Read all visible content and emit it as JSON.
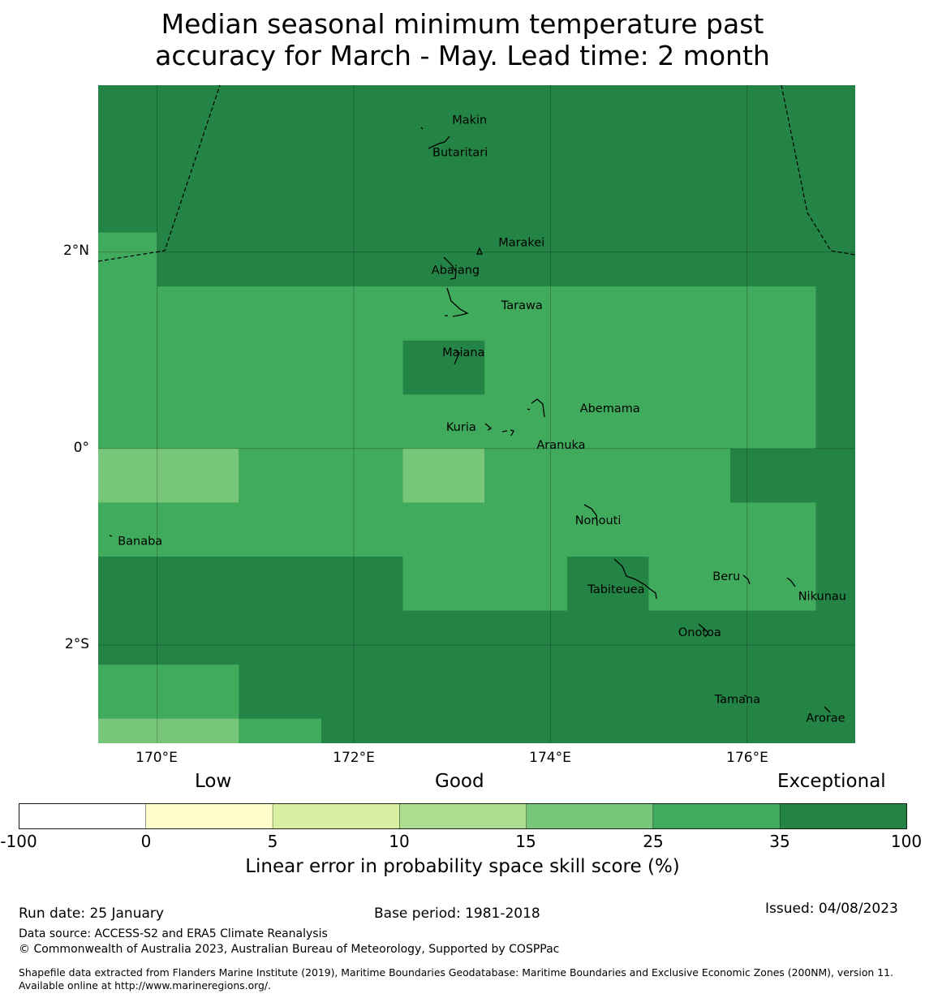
{
  "title_line1": "Median seasonal minimum temperature past",
  "title_line2": "accuracy for March - May. Lead time: 2 month",
  "map": {
    "lon_range": [
      169.4,
      177.1
    ],
    "lat_range": [
      -3.0,
      3.7
    ],
    "grid_lon": [
      170,
      172,
      174,
      176
    ],
    "grid_lat": [
      2,
      0,
      -2
    ],
    "y_labels": [
      "2°N",
      "0°",
      "2°S"
    ],
    "x_labels": [
      "170°E",
      "172°E",
      "174°E",
      "176°E"
    ],
    "background_category_color": "#248445",
    "skill_cells": [
      {
        "lon0": 169.4,
        "lon1": 170.0,
        "lat0": 0.0,
        "lat1": 2.2,
        "color": "#41ab5d"
      },
      {
        "lon0": 170.0,
        "lon1": 176.7,
        "lat0": 0.0,
        "lat1": 1.65,
        "color": "#41ab5d"
      },
      {
        "lon0": 172.5,
        "lon1": 173.33,
        "lat0": 0.55,
        "lat1": 1.1,
        "color": "#248445"
      },
      {
        "lon0": 169.4,
        "lon1": 170.83,
        "lat0": -0.55,
        "lat1": 0.0,
        "color": "#78c679"
      },
      {
        "lon0": 170.83,
        "lon1": 172.5,
        "lat0": -0.55,
        "lat1": 0.0,
        "color": "#41ab5d"
      },
      {
        "lon0": 172.5,
        "lon1": 173.33,
        "lat0": -0.55,
        "lat1": 0.0,
        "color": "#78c679"
      },
      {
        "lon0": 173.33,
        "lon1": 175.83,
        "lat0": -0.55,
        "lat1": 0.0,
        "color": "#41ab5d"
      },
      {
        "lon0": 169.4,
        "lon1": 176.7,
        "lat0": -1.1,
        "lat1": -0.55,
        "color": "#41ab5d"
      },
      {
        "lon0": 172.5,
        "lon1": 174.17,
        "lat0": -1.65,
        "lat1": -1.1,
        "color": "#41ab5d"
      },
      {
        "lon0": 175.0,
        "lon1": 176.7,
        "lat0": -1.65,
        "lat1": -1.1,
        "color": "#41ab5d"
      },
      {
        "lon0": 169.4,
        "lon1": 170.83,
        "lat0": -2.75,
        "lat1": -2.2,
        "color": "#41ab5d"
      },
      {
        "lon0": 169.4,
        "lon1": 170.83,
        "lat0": -3.0,
        "lat1": -2.75,
        "color": "#78c679"
      },
      {
        "lon0": 170.83,
        "lon1": 171.67,
        "lat0": -3.0,
        "lat1": -2.75,
        "color": "#41ab5d"
      }
    ],
    "places": [
      {
        "name": "Makin",
        "lon": 173.0,
        "lat": 3.35
      },
      {
        "name": "Butaritari",
        "lon": 172.8,
        "lat": 3.02
      },
      {
        "name": "Marakei",
        "lon": 173.47,
        "lat": 2.1
      },
      {
        "name": "Abaiang",
        "lon": 172.79,
        "lat": 1.82
      },
      {
        "name": "Tarawa",
        "lon": 173.5,
        "lat": 1.46
      },
      {
        "name": "Maiana",
        "lon": 172.9,
        "lat": 0.98
      },
      {
        "name": "Abemama",
        "lon": 174.3,
        "lat": 0.41
      },
      {
        "name": "Kuria",
        "lon": 172.94,
        "lat": 0.22
      },
      {
        "name": "Aranuka",
        "lon": 173.86,
        "lat": 0.04
      },
      {
        "name": "Nonouti",
        "lon": 174.25,
        "lat": -0.73
      },
      {
        "name": "Banaba",
        "lon": 169.6,
        "lat": -0.94
      },
      {
        "name": "Beru",
        "lon": 175.65,
        "lat": -1.3
      },
      {
        "name": "Tabiteuea",
        "lon": 174.38,
        "lat": -1.43
      },
      {
        "name": "Nikunau",
        "lon": 176.52,
        "lat": -1.5
      },
      {
        "name": "Onotoa",
        "lon": 175.3,
        "lat": -1.87
      },
      {
        "name": "Tamana",
        "lon": 175.67,
        "lat": -2.55
      },
      {
        "name": "Arorae",
        "lon": 176.6,
        "lat": -2.74
      }
    ]
  },
  "colorbar": {
    "category_labels": [
      "Low",
      "Good",
      "Exceptional"
    ],
    "tick_labels": [
      "-100",
      "0",
      "5",
      "10",
      "15",
      "25",
      "35",
      "100"
    ],
    "colors": [
      "#ffffff",
      "#ffffcc",
      "#d9f0a3",
      "#addd8e",
      "#78c679",
      "#41ab5d",
      "#248445"
    ],
    "title": "Linear error in probability space skill score (%)"
  },
  "footer": {
    "run_date": "Run date: 25 January",
    "base_period": "Base period: 1981-2018",
    "issued": "Issued: 04/08/2023",
    "data_source": "Data source: ACCESS-S2 and ERA5 Climate Reanalysis",
    "copyright": "© Commonwealth of Australia 2023, Australian Bureau of Meteorology, Supported by COSPPac",
    "shapefile": "Shapefile data extracted from Flanders Marine Institute (2019), Maritime Boundaries Geodatabase: Maritime Boundaries and Exclusive Economic Zones (200NM), version 11. Available online at http://www.marineregions.org/."
  }
}
